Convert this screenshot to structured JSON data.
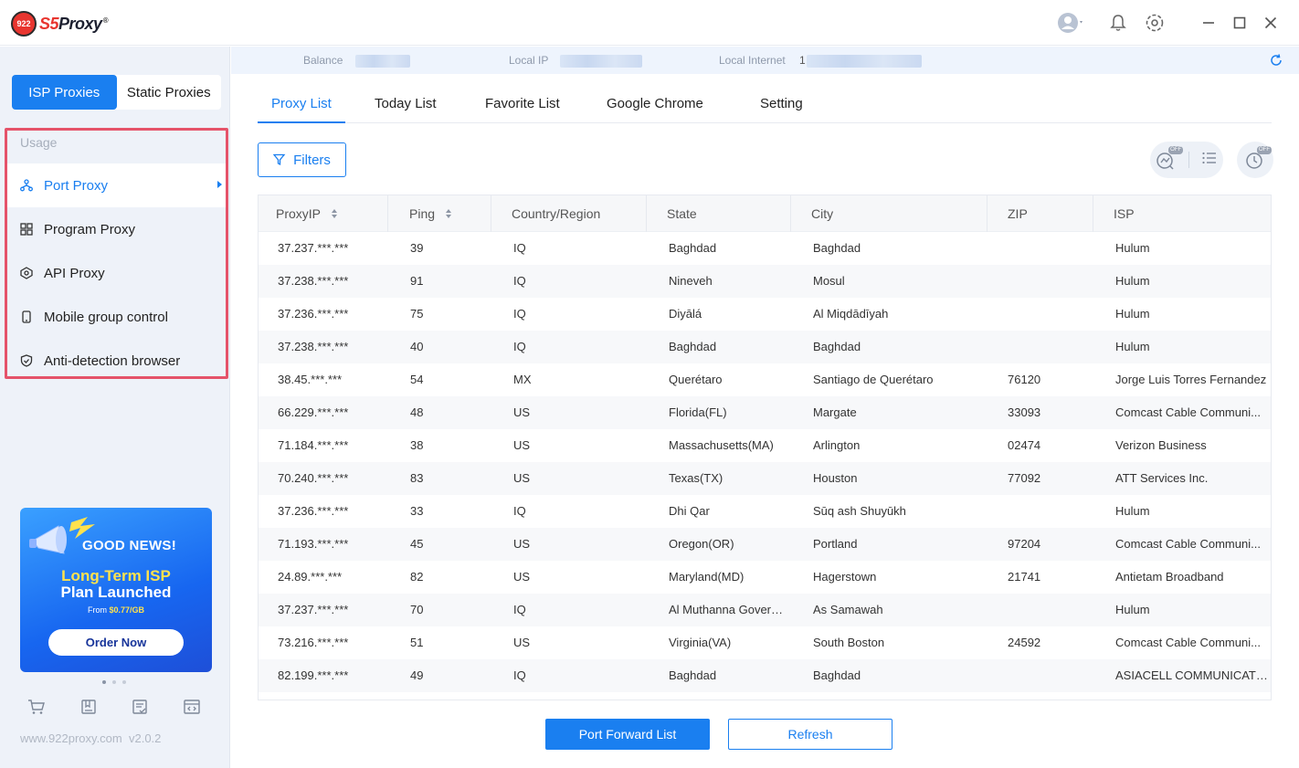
{
  "app": {
    "logo_badge": "922",
    "logo_s5": "S5",
    "logo_proxy": "Proxy",
    "logo_reg": "®"
  },
  "titlebar": {
    "icons": [
      "avatar-icon",
      "bell-icon",
      "gear-icon",
      "minimize-icon",
      "maximize-icon",
      "close-icon"
    ]
  },
  "sidebar": {
    "segments": [
      {
        "label": "ISP Proxies",
        "active": true
      },
      {
        "label": "Static Proxies",
        "active": false
      }
    ],
    "usage_label": "Usage",
    "items": [
      {
        "label": "Port Proxy",
        "icon": "network-icon",
        "active": true
      },
      {
        "label": "Program Proxy",
        "icon": "apps-icon",
        "active": false
      },
      {
        "label": "API Proxy",
        "icon": "api-icon",
        "active": false
      },
      {
        "label": "Mobile group control",
        "icon": "mobile-icon",
        "active": false
      },
      {
        "label": "Anti-detection browser",
        "icon": "shield-icon",
        "active": false
      }
    ],
    "banner": {
      "headline": "GOOD NEWS!",
      "line1": "Long-Term ISP",
      "line2": "Plan Launched",
      "from_label": "From",
      "price": "$0.77/GB",
      "button": "Order Now"
    },
    "tools": [
      "cart-icon",
      "book-icon",
      "orders-icon",
      "code-icon"
    ],
    "website": "www.922proxy.com",
    "version": "v2.0.2"
  },
  "infobar": {
    "balance_label": "Balance",
    "local_ip_label": "Local IP",
    "local_internet_label": "Local Internet",
    "local_internet_prefix": "1"
  },
  "tabs": [
    {
      "label": "Proxy List",
      "active": true
    },
    {
      "label": "Today List",
      "active": false
    },
    {
      "label": "Favorite List",
      "active": false
    },
    {
      "label": "Google Chrome",
      "active": false
    },
    {
      "label": "Setting",
      "active": false
    }
  ],
  "toolbar": {
    "filters_label": "Filters",
    "view_badge": "OFF"
  },
  "table": {
    "columns": [
      "ProxyIP",
      "Ping",
      "Country/Region",
      "State",
      "City",
      "ZIP",
      "ISP"
    ],
    "rows": [
      [
        "37.237.***.***",
        "39",
        "IQ",
        "Baghdad",
        "Baghdad",
        "",
        "Hulum"
      ],
      [
        "37.238.***.***",
        "91",
        "IQ",
        "Nineveh",
        "Mosul",
        "",
        "Hulum"
      ],
      [
        "37.236.***.***",
        "75",
        "IQ",
        "Diyālá",
        "Al Miqdādīyah",
        "",
        "Hulum"
      ],
      [
        "37.238.***.***",
        "40",
        "IQ",
        "Baghdad",
        "Baghdad",
        "",
        "Hulum"
      ],
      [
        "38.45.***.***",
        "54",
        "MX",
        "Querétaro",
        "Santiago de Querétaro",
        "76120",
        "Jorge Luis Torres Fernandez"
      ],
      [
        "66.229.***.***",
        "48",
        "US",
        "Florida(FL)",
        "Margate",
        "33093",
        "Comcast Cable Communi..."
      ],
      [
        "71.184.***.***",
        "38",
        "US",
        "Massachusetts(MA)",
        "Arlington",
        "02474",
        "Verizon Business"
      ],
      [
        "70.240.***.***",
        "83",
        "US",
        "Texas(TX)",
        "Houston",
        "77092",
        "ATT Services Inc."
      ],
      [
        "37.236.***.***",
        "33",
        "IQ",
        "Dhi Qar",
        "Sūq ash Shuyūkh",
        "",
        "Hulum"
      ],
      [
        "71.193.***.***",
        "45",
        "US",
        "Oregon(OR)",
        "Portland",
        "97204",
        "Comcast Cable Communi..."
      ],
      [
        "24.89.***.***",
        "82",
        "US",
        "Maryland(MD)",
        "Hagerstown",
        "21741",
        "Antietam Broadband"
      ],
      [
        "37.237.***.***",
        "70",
        "IQ",
        "Al Muthanna Govern...",
        "As Samawah",
        "",
        "Hulum"
      ],
      [
        "73.216.***.***",
        "51",
        "US",
        "Virginia(VA)",
        "South Boston",
        "24592",
        "Comcast Cable Communi..."
      ],
      [
        "82.199.***.***",
        "49",
        "IQ",
        "Baghdad",
        "Baghdad",
        "",
        "ASIACELL COMMUNICATION..."
      ]
    ]
  },
  "footer": {
    "port_forward_label": "Port Forward List",
    "refresh_label": "Refresh"
  },
  "colors": {
    "accent": "#1a7ff0",
    "highlight_border": "#e5536a",
    "sidebar_bg": "#eef2f9"
  }
}
